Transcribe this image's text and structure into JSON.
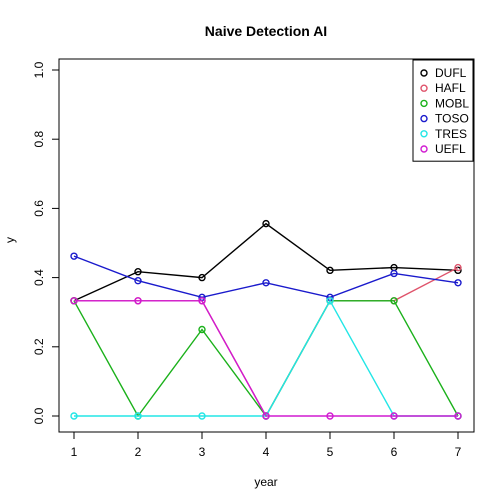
{
  "chart_data": {
    "type": "line",
    "title": "Naive Detection AI",
    "xlabel": "year",
    "ylabel": "y",
    "x": [
      1,
      2,
      3,
      4,
      5,
      6,
      7
    ],
    "xlim": [
      1,
      7
    ],
    "ylim": [
      0,
      1
    ],
    "xticks": [
      "1",
      "2",
      "3",
      "4",
      "5",
      "6",
      "7"
    ],
    "yticks": [
      "0.0",
      "0.2",
      "0.4",
      "0.6",
      "0.8",
      "1.0"
    ],
    "grid": false,
    "legend_position": "top-right",
    "series": [
      {
        "name": "DUFL",
        "color": "#000000",
        "values": [
          0.333,
          0.417,
          0.4,
          0.556,
          0.421,
          0.429,
          0.421
        ]
      },
      {
        "name": "HAFL",
        "color": "#DF536B",
        "values": [
          0.333,
          0.333,
          0.333,
          0.0,
          0.333,
          0.333,
          0.429
        ]
      },
      {
        "name": "MOBL",
        "color": "#1BB11B",
        "values": [
          0.333,
          0.0,
          0.25,
          0.0,
          0.333,
          0.333,
          0.0
        ]
      },
      {
        "name": "TOSO",
        "color": "#1A1ACC",
        "values": [
          0.462,
          0.391,
          0.343,
          0.385,
          0.343,
          0.412,
          0.385
        ]
      },
      {
        "name": "TRES",
        "color": "#22E6E6",
        "values": [
          0.0,
          0.0,
          0.0,
          0.0,
          0.333,
          0.0,
          0.0
        ]
      },
      {
        "name": "UEFL",
        "color": "#D11AD1",
        "values": [
          0.333,
          0.333,
          0.333,
          0.0,
          0.0,
          0.0,
          0.0
        ]
      }
    ]
  }
}
